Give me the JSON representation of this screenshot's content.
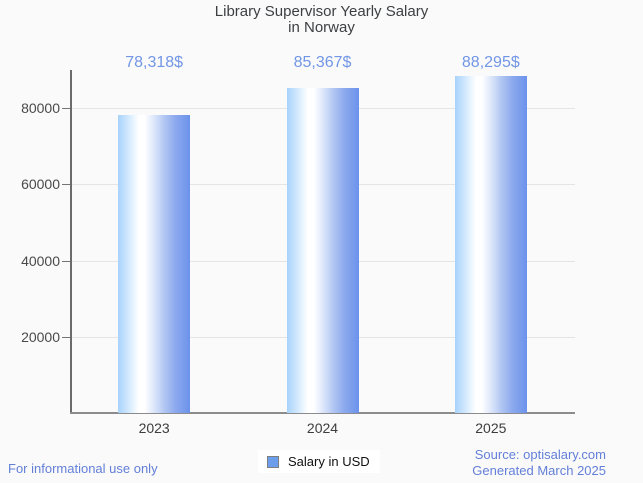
{
  "title": {
    "line1": "Library Supervisor Yearly Salary",
    "line2": "in Norway"
  },
  "chart_data": {
    "type": "bar",
    "title": "Library Supervisor Yearly Salary in Norway",
    "categories": [
      "2023",
      "2024",
      "2025"
    ],
    "values": [
      78318,
      85367,
      88295
    ],
    "value_labels": [
      "78,318$",
      "85,367$",
      "88,295$"
    ],
    "series_name": "Salary in USD",
    "xlabel": "",
    "ylabel": "",
    "ylim": [
      0,
      90000
    ],
    "yticks": [
      20000,
      40000,
      60000,
      80000
    ],
    "ytick_labels": [
      "20000",
      "40000",
      "60000",
      "80000"
    ],
    "grid": true,
    "legend_position": "bottom"
  },
  "legend": {
    "label": "Salary in USD",
    "swatch_color": "#6d9eeb"
  },
  "footer": {
    "left": "For informational use only",
    "source": "Source: optisalary.com",
    "generated": "Generated March 2025"
  },
  "colors": {
    "background": "#fafafa",
    "title_text": "#3d3f42",
    "value_label": "#7296e6",
    "axis_label": "#4a4a4a",
    "gridline": "#e4e4e4",
    "y_axis_line": "#6b6b6b",
    "x_axis_line": "#8c8c8c",
    "bar_gradient_left": "#a8d2fc",
    "bar_gradient_middle": "#ffffff",
    "bar_gradient_right": "#6b92eb",
    "legend_swatch": "#6d9eeb",
    "footer_text": "#637fd8"
  }
}
